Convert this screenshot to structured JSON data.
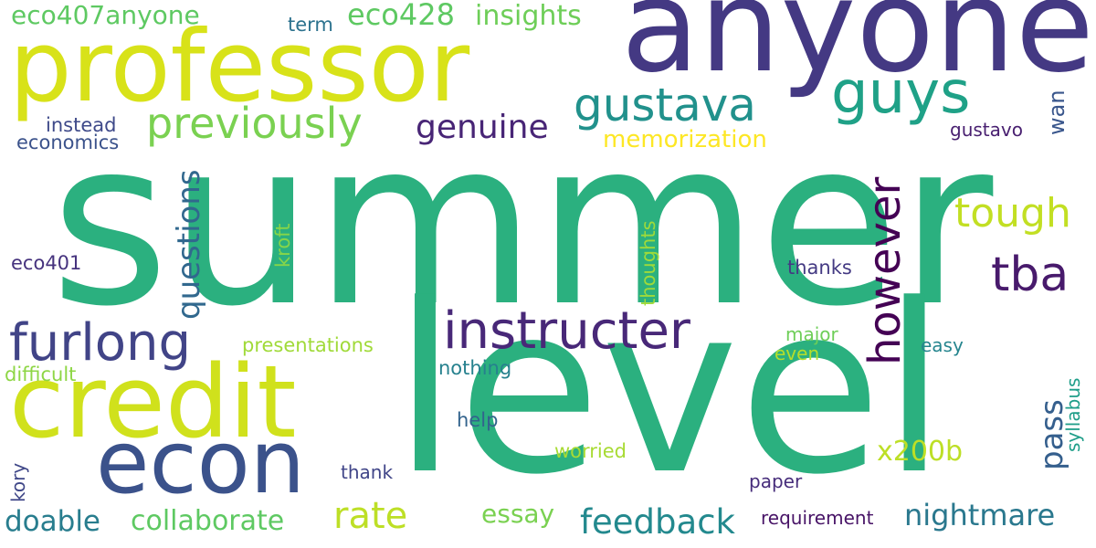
{
  "words": [
    {
      "text": "summer",
      "color": "#2bb07f",
      "vertical": false
    },
    {
      "text": "level",
      "color": "#2bb07f",
      "vertical": false
    },
    {
      "text": "anyone",
      "color": "#443983",
      "vertical": false
    },
    {
      "text": "professor",
      "color": "#d8e219",
      "vertical": false
    },
    {
      "text": "credit",
      "color": "#d0e11c",
      "vertical": false
    },
    {
      "text": "econ",
      "color": "#3b528b",
      "vertical": false
    },
    {
      "text": "instructer",
      "color": "#482878",
      "vertical": false
    },
    {
      "text": "furlong",
      "color": "#414487",
      "vertical": false
    },
    {
      "text": "guys",
      "color": "#1fa187",
      "vertical": false
    },
    {
      "text": "gustava",
      "color": "#21918c",
      "vertical": false
    },
    {
      "text": "however",
      "color": "#440154",
      "vertical": true
    },
    {
      "text": "tba",
      "color": "#481a6c",
      "vertical": false
    },
    {
      "text": "previously",
      "color": "#7ad151",
      "vertical": false
    },
    {
      "text": "genuine",
      "color": "#482576",
      "vertical": false
    },
    {
      "text": "tough",
      "color": "#c2df23",
      "vertical": false
    },
    {
      "text": "rate",
      "color": "#bddf26",
      "vertical": false
    },
    {
      "text": "nightmare",
      "color": "#2a788e",
      "vertical": false
    },
    {
      "text": "feedback",
      "color": "#23898e",
      "vertical": false
    },
    {
      "text": "doable",
      "color": "#287d8e",
      "vertical": false
    },
    {
      "text": "collaborate",
      "color": "#5ec962",
      "vertical": false
    },
    {
      "text": "questions",
      "color": "#31688e",
      "vertical": true
    },
    {
      "text": "pass",
      "color": "#355f8d",
      "vertical": true
    },
    {
      "text": "x200b",
      "color": "#bddf26",
      "vertical": false
    },
    {
      "text": "eco428",
      "color": "#5ec962",
      "vertical": false
    },
    {
      "text": "insights",
      "color": "#6ece58",
      "vertical": false
    },
    {
      "text": "eco407anyone",
      "color": "#5ec962",
      "vertical": false
    },
    {
      "text": "memorization",
      "color": "#fde725",
      "vertical": false
    },
    {
      "text": "essay",
      "color": "#7ad151",
      "vertical": false
    },
    {
      "text": "wan",
      "color": "#39568c",
      "vertical": true
    },
    {
      "text": "term",
      "color": "#2c728e",
      "vertical": false
    },
    {
      "text": "instead",
      "color": "#3e4989",
      "vertical": false
    },
    {
      "text": "economics",
      "color": "#3b528b",
      "vertical": false
    },
    {
      "text": "gustavo",
      "color": "#481f70",
      "vertical": false
    },
    {
      "text": "eco401",
      "color": "#46337e",
      "vertical": false
    },
    {
      "text": "kroft",
      "color": "#86d549",
      "vertical": true
    },
    {
      "text": "thoughts",
      "color": "#9fda3a",
      "vertical": true
    },
    {
      "text": "thanks",
      "color": "#443a83",
      "vertical": false
    },
    {
      "text": "presentations",
      "color": "#a0da39",
      "vertical": false
    },
    {
      "text": "major",
      "color": "#6ece58",
      "vertical": false
    },
    {
      "text": "even",
      "color": "#b5de2b",
      "vertical": false
    },
    {
      "text": "easy",
      "color": "#25858e",
      "vertical": false
    },
    {
      "text": "difficult",
      "color": "#8ed645",
      "vertical": false
    },
    {
      "text": "nothing",
      "color": "#26818e",
      "vertical": false
    },
    {
      "text": "help",
      "color": "#33638d",
      "vertical": false
    },
    {
      "text": "syllabus",
      "color": "#1f9e89",
      "vertical": true
    },
    {
      "text": "worried",
      "color": "#a8db34",
      "vertical": false
    },
    {
      "text": "kory",
      "color": "#3f4788",
      "vertical": true
    },
    {
      "text": "thank",
      "color": "#404588",
      "vertical": false
    },
    {
      "text": "paper",
      "color": "#472d7b",
      "vertical": false
    },
    {
      "text": "requirement",
      "color": "#481467",
      "vertical": false
    }
  ]
}
